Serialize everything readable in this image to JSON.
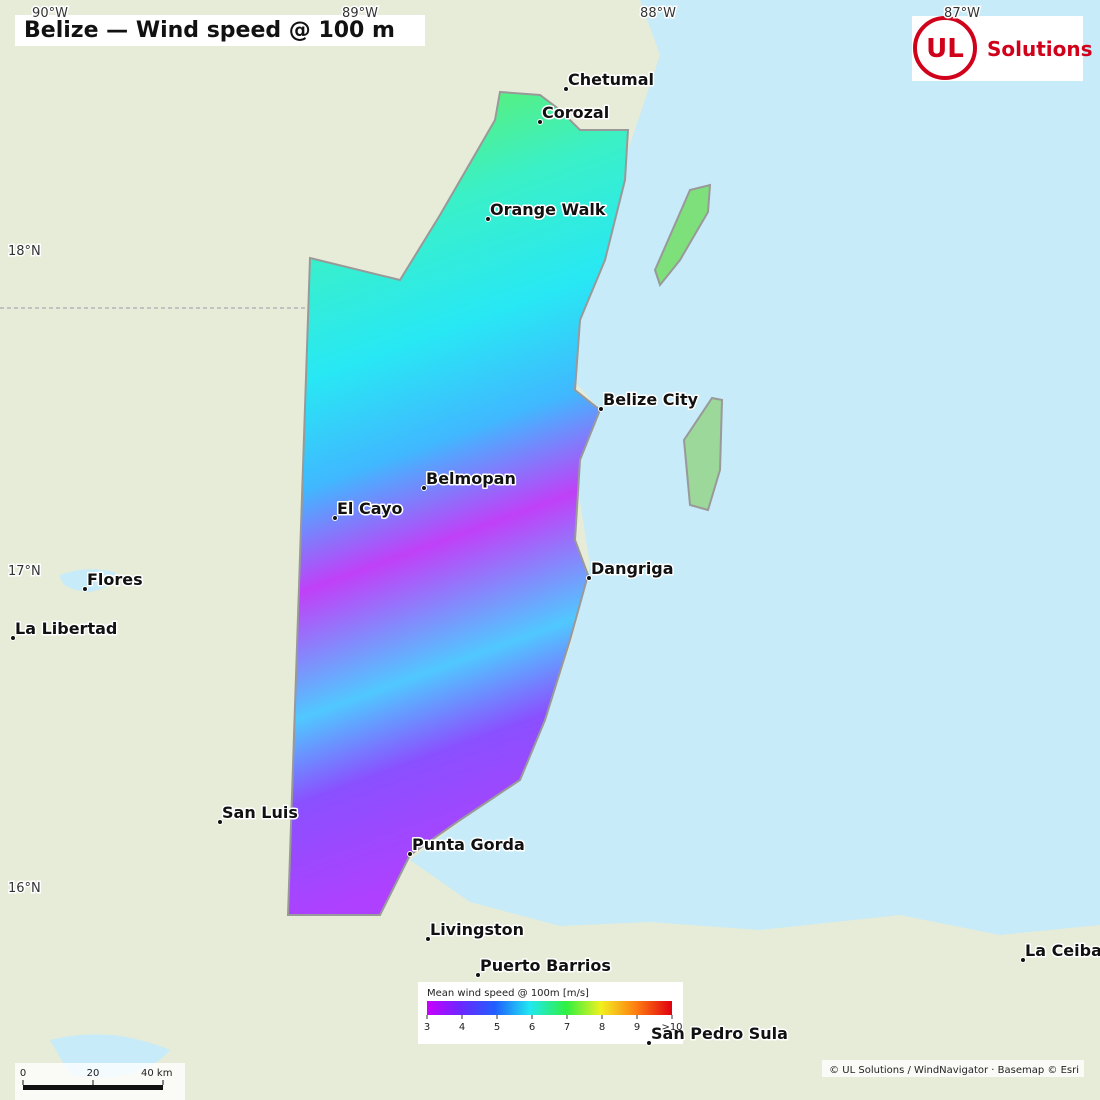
{
  "title": "Belize — Wind speed @ 100 m",
  "logo": {
    "mark": "UL",
    "text": "Solutions"
  },
  "graticule": {
    "lon": [
      "90°W",
      "89°W",
      "88°W",
      "87°W"
    ],
    "lat": [
      "18°N",
      "17°N",
      "16°N"
    ]
  },
  "cities": [
    "Chetumal",
    "Corozal",
    "Orange Walk",
    "Belize City",
    "Belmopan",
    "El Cayo",
    "Dangriga",
    "Flores",
    "La Libertad",
    "San Luis",
    "Punta Gorda",
    "Livingston",
    "Puerto Barrios",
    "San Pedro Sula",
    "La Ceiba"
  ],
  "legend": {
    "title": "Mean wind speed @ 100m [m/s]",
    "ticks": [
      3,
      4,
      5,
      6,
      7,
      8,
      9,
      {
        "value": 10,
        "label": ">10"
      }
    ]
  },
  "scale_bar": {
    "ticks": [
      0,
      20,
      {
        "value": 40,
        "label": "40 km"
      }
    ]
  },
  "attribution": "© UL Solutions / WindNavigator · Basemap © Esri"
}
